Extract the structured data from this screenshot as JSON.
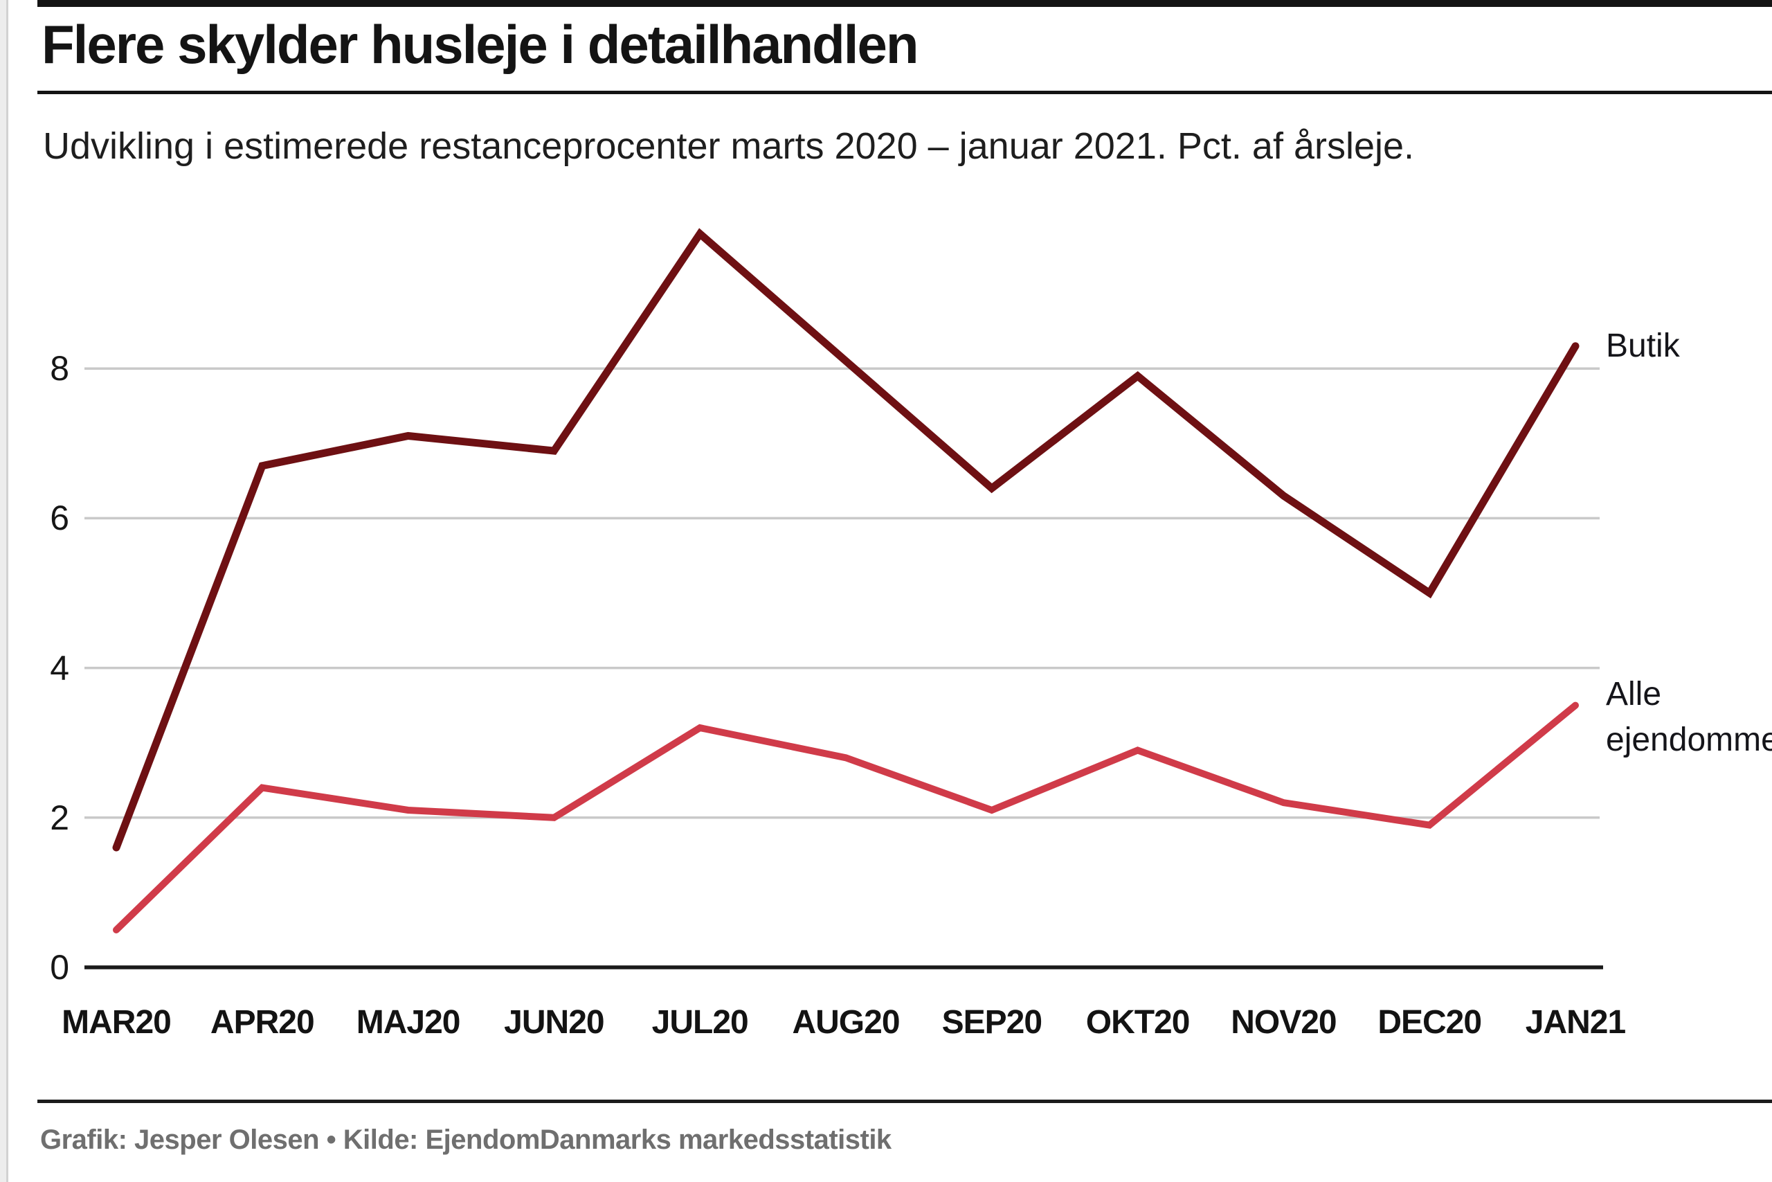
{
  "title": "Flere skylder husleje i detailhandlen",
  "subtitle": "Udvikling i estimerede restanceprocenter marts 2020 – januar 2021. Pct. af årsleje.",
  "footer": {
    "credit": "Grafik: Jesper Olesen • Kilde: EjendomDanmarks markedsstatistik"
  },
  "chart_data": {
    "type": "line",
    "title": "Flere skylder husleje i detailhandlen",
    "subtitle": "Udvikling i estimerede restanceprocenter marts 2020 – januar 2021. Pct. af årsleje.",
    "categories": [
      "MAR20",
      "APR20",
      "MAJ20",
      "JUN20",
      "JUL20",
      "AUG20",
      "SEP20",
      "OKT20",
      "NOV20",
      "DEC20",
      "JAN21"
    ],
    "series": [
      {
        "name": "Butik",
        "color": "#6e1013",
        "values": [
          1.6,
          6.7,
          7.1,
          6.9,
          9.8,
          8.1,
          6.4,
          7.9,
          6.3,
          5.0,
          8.3
        ]
      },
      {
        "name": "Alle ejendomme",
        "color": "#d03b49",
        "values": [
          0.5,
          2.4,
          2.1,
          2.0,
          3.2,
          2.8,
          2.1,
          2.9,
          2.2,
          1.9,
          3.5
        ]
      }
    ],
    "yticks": [
      0,
      2,
      4,
      6,
      8
    ],
    "ylim": [
      0,
      10.2
    ],
    "xlabel": "",
    "ylabel": "",
    "grid": "horizontal",
    "grid_color": "#c9c9c9",
    "axis_color": "#1a1a1a",
    "legend_position": "right-of-line-ends"
  }
}
